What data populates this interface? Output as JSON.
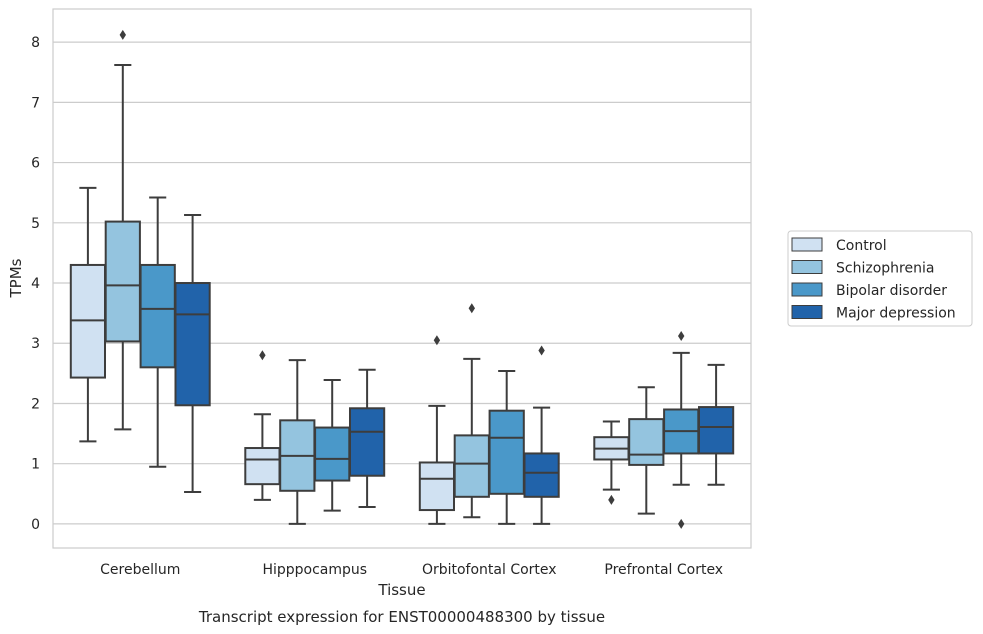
{
  "chart_data": {
    "type": "box",
    "title": "",
    "caption": "Transcript expression for ENST00000488300 by tissue",
    "xlabel": "Tissue",
    "ylabel": "TPMs",
    "ylim": [
      -0.4,
      8.55
    ],
    "yticks": [
      0,
      1,
      2,
      3,
      4,
      5,
      6,
      7,
      8
    ],
    "grid": "horizontal",
    "legend_position": "right",
    "categories": [
      "Cerebellum",
      "Hipppocampus",
      "Orbitofontal Cortex",
      "Prefrontal Cortex"
    ],
    "series": [
      {
        "name": "Control",
        "color": "#d0e1f2",
        "boxes": [
          {
            "whislo": 1.37,
            "q1": 2.43,
            "med": 3.38,
            "q3": 4.3,
            "whishi": 5.58,
            "fliers": []
          },
          {
            "whislo": 0.4,
            "q1": 0.66,
            "med": 1.07,
            "q3": 1.26,
            "whishi": 1.82,
            "fliers": [
              2.8
            ]
          },
          {
            "whislo": 0.0,
            "q1": 0.23,
            "med": 0.75,
            "q3": 1.02,
            "whishi": 1.96,
            "fliers": [
              3.05
            ]
          },
          {
            "whislo": 0.57,
            "q1": 1.07,
            "med": 1.25,
            "q3": 1.44,
            "whishi": 1.7,
            "fliers": [
              0.4
            ]
          }
        ]
      },
      {
        "name": "Schizophrenia",
        "color": "#94c4df",
        "boxes": [
          {
            "whislo": 1.57,
            "q1": 3.03,
            "med": 3.96,
            "q3": 5.02,
            "whishi": 7.62,
            "fliers": [
              8.12
            ]
          },
          {
            "whislo": 0.0,
            "q1": 0.55,
            "med": 1.13,
            "q3": 1.72,
            "whishi": 2.72,
            "fliers": []
          },
          {
            "whislo": 0.11,
            "q1": 0.45,
            "med": 1.0,
            "q3": 1.47,
            "whishi": 2.74,
            "fliers": [
              3.58
            ]
          },
          {
            "whislo": 0.17,
            "q1": 0.98,
            "med": 1.15,
            "q3": 1.74,
            "whishi": 2.27,
            "fliers": []
          }
        ]
      },
      {
        "name": "Bipolar disorder",
        "color": "#4a98c9",
        "boxes": [
          {
            "whislo": 0.95,
            "q1": 2.6,
            "med": 3.57,
            "q3": 4.3,
            "whishi": 5.42,
            "fliers": []
          },
          {
            "whislo": 0.22,
            "q1": 0.72,
            "med": 1.08,
            "q3": 1.6,
            "whishi": 2.39,
            "fliers": []
          },
          {
            "whislo": 0.0,
            "q1": 0.5,
            "med": 1.43,
            "q3": 1.88,
            "whishi": 2.54,
            "fliers": []
          },
          {
            "whislo": 0.65,
            "q1": 1.17,
            "med": 1.54,
            "q3": 1.9,
            "whishi": 2.84,
            "fliers": [
              3.12,
              0.0
            ]
          }
        ]
      },
      {
        "name": "Major depression",
        "color": "#2163aa",
        "boxes": [
          {
            "whislo": 0.53,
            "q1": 1.97,
            "med": 3.48,
            "q3": 4.0,
            "whishi": 5.13,
            "fliers": []
          },
          {
            "whislo": 0.28,
            "q1": 0.8,
            "med": 1.53,
            "q3": 1.92,
            "whishi": 2.56,
            "fliers": []
          },
          {
            "whislo": 0.0,
            "q1": 0.45,
            "med": 0.85,
            "q3": 1.17,
            "whishi": 1.93,
            "fliers": [
              2.88
            ]
          },
          {
            "whislo": 0.65,
            "q1": 1.17,
            "med": 1.61,
            "q3": 1.94,
            "whishi": 2.64,
            "fliers": []
          }
        ]
      }
    ]
  }
}
